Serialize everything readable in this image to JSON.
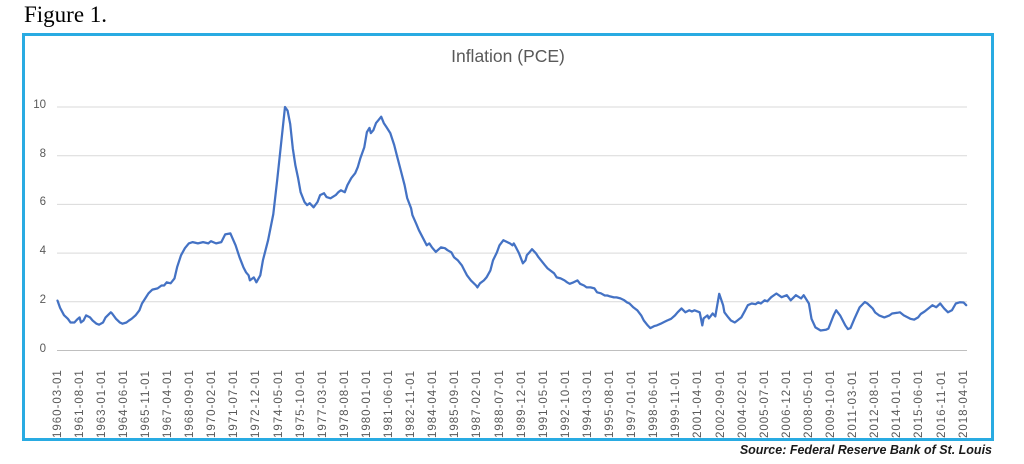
{
  "figure": {
    "label": "Figure 1.",
    "source_note": "Source: Federal Reserve Bank of St. Louis"
  },
  "colors": {
    "frame_border": "#29ABE2",
    "line": "#4472C4",
    "gridline": "#D9D9D9",
    "axis_zero_line": "#BFBFBF",
    "axis_text": "#595959",
    "title_text": "#595959",
    "source_text": "#1a1a1a"
  },
  "chart_data": {
    "type": "line",
    "title": "Inflation (PCE)",
    "xlabel": "",
    "ylabel": "",
    "ylim": [
      0,
      10
    ],
    "y_ticks": [
      0,
      2,
      4,
      6,
      8,
      10
    ],
    "grid": "horizontal",
    "legend": "none",
    "x_tick_labels": [
      "1960-03-01",
      "1961-08-01",
      "1963-01-01",
      "1964-06-01",
      "1965-11-01",
      "1967-04-01",
      "1968-09-01",
      "1970-02-01",
      "1971-07-01",
      "1972-12-01",
      "1974-05-01",
      "1975-10-01",
      "1977-03-01",
      "1978-08-01",
      "1980-01-01",
      "1981-06-01",
      "1982-11-01",
      "1984-04-01",
      "1985-09-01",
      "1987-02-01",
      "1988-07-01",
      "1989-12-01",
      "1991-05-01",
      "1992-10-01",
      "1994-03-01",
      "1995-08-01",
      "1997-01-01",
      "1998-06-01",
      "1999-11-01",
      "2001-04-01",
      "2002-09-01",
      "2004-02-01",
      "2005-07-01",
      "2006-12-01",
      "2008-05-01",
      "2009-10-01",
      "2011-03-01",
      "2012-08-01",
      "2014-01-01",
      "2015-06-01",
      "2016-11-01",
      "2018-04-01"
    ],
    "series": [
      {
        "name": "Inflation (PCE)",
        "color": "#4472C4",
        "points": [
          [
            "1960-03",
            2.05
          ],
          [
            "1960-05",
            1.75
          ],
          [
            "1960-08",
            1.45
          ],
          [
            "1960-11",
            1.3
          ],
          [
            "1961-01",
            1.15
          ],
          [
            "1961-04",
            1.15
          ],
          [
            "1961-06",
            1.27
          ],
          [
            "1961-08",
            1.36
          ],
          [
            "1961-09",
            1.15
          ],
          [
            "1961-11",
            1.23
          ],
          [
            "1962-01",
            1.44
          ],
          [
            "1962-04",
            1.36
          ],
          [
            "1962-06",
            1.23
          ],
          [
            "1962-09",
            1.1
          ],
          [
            "1962-11",
            1.06
          ],
          [
            "1963-02",
            1.15
          ],
          [
            "1963-04",
            1.36
          ],
          [
            "1963-08",
            1.57
          ],
          [
            "1963-09",
            1.52
          ],
          [
            "1963-12",
            1.3
          ],
          [
            "1964-03",
            1.15
          ],
          [
            "1964-05",
            1.1
          ],
          [
            "1964-08",
            1.15
          ],
          [
            "1964-10",
            1.23
          ],
          [
            "1964-12",
            1.3
          ],
          [
            "1965-03",
            1.44
          ],
          [
            "1965-06",
            1.65
          ],
          [
            "1965-08",
            1.93
          ],
          [
            "1965-11",
            2.18
          ],
          [
            "1966-01",
            2.35
          ],
          [
            "1966-04",
            2.5
          ],
          [
            "1966-08",
            2.55
          ],
          [
            "1966-11",
            2.67
          ],
          [
            "1967-01",
            2.67
          ],
          [
            "1967-03",
            2.8
          ],
          [
            "1967-06",
            2.76
          ],
          [
            "1967-09",
            2.96
          ],
          [
            "1967-11",
            3.42
          ],
          [
            "1968-02",
            3.91
          ],
          [
            "1968-05",
            4.2
          ],
          [
            "1968-08",
            4.4
          ],
          [
            "1968-11",
            4.45
          ],
          [
            "1969-03",
            4.4
          ],
          [
            "1969-07",
            4.45
          ],
          [
            "1969-11",
            4.4
          ],
          [
            "1970-01",
            4.49
          ],
          [
            "1970-05",
            4.4
          ],
          [
            "1970-09",
            4.45
          ],
          [
            "1970-12",
            4.77
          ],
          [
            "1971-04",
            4.81
          ],
          [
            "1971-08",
            4.32
          ],
          [
            "1971-11",
            3.83
          ],
          [
            "1972-02",
            3.42
          ],
          [
            "1972-04",
            3.21
          ],
          [
            "1972-06",
            3.09
          ],
          [
            "1972-07",
            2.88
          ],
          [
            "1972-10",
            3.0
          ],
          [
            "1972-12",
            2.8
          ],
          [
            "1973-03",
            3.09
          ],
          [
            "1973-05",
            3.7
          ],
          [
            "1973-09",
            4.53
          ],
          [
            "1974-01",
            5.6
          ],
          [
            "1974-04",
            7.0
          ],
          [
            "1974-07",
            8.5
          ],
          [
            "1974-10",
            10.0
          ],
          [
            "1974-12",
            9.85
          ],
          [
            "1975-02",
            9.3
          ],
          [
            "1975-04",
            8.3
          ],
          [
            "1975-06",
            7.6
          ],
          [
            "1975-08",
            7.1
          ],
          [
            "1975-10",
            6.5
          ],
          [
            "1976-01",
            6.1
          ],
          [
            "1976-03",
            5.97
          ],
          [
            "1976-05",
            6.05
          ],
          [
            "1976-08",
            5.88
          ],
          [
            "1976-11",
            6.1
          ],
          [
            "1977-01",
            6.38
          ],
          [
            "1977-04",
            6.46
          ],
          [
            "1977-06",
            6.3
          ],
          [
            "1977-09",
            6.25
          ],
          [
            "1978-01",
            6.38
          ],
          [
            "1978-03",
            6.5
          ],
          [
            "1978-05",
            6.58
          ],
          [
            "1978-08",
            6.5
          ],
          [
            "1978-10",
            6.79
          ],
          [
            "1979-01",
            7.08
          ],
          [
            "1979-04",
            7.28
          ],
          [
            "1979-06",
            7.53
          ],
          [
            "1979-08",
            7.9
          ],
          [
            "1979-11",
            8.35
          ],
          [
            "1980-01",
            8.97
          ],
          [
            "1980-03",
            9.14
          ],
          [
            "1980-04",
            8.93
          ],
          [
            "1980-06",
            9.05
          ],
          [
            "1980-08",
            9.34
          ],
          [
            "1980-10",
            9.47
          ],
          [
            "1980-12",
            9.6
          ],
          [
            "1981-02",
            9.34
          ],
          [
            "1981-04",
            9.18
          ],
          [
            "1981-07",
            8.93
          ],
          [
            "1981-10",
            8.44
          ],
          [
            "1981-12",
            8.02
          ],
          [
            "1982-03",
            7.41
          ],
          [
            "1982-06",
            6.79
          ],
          [
            "1982-08",
            6.26
          ],
          [
            "1982-11",
            5.84
          ],
          [
            "1982-12",
            5.56
          ],
          [
            "1983-03",
            5.2
          ],
          [
            "1983-05",
            4.94
          ],
          [
            "1983-09",
            4.53
          ],
          [
            "1983-11",
            4.32
          ],
          [
            "1984-01",
            4.4
          ],
          [
            "1984-03",
            4.24
          ],
          [
            "1984-06",
            4.05
          ],
          [
            "1984-10",
            4.24
          ],
          [
            "1985-01",
            4.2
          ],
          [
            "1985-03",
            4.12
          ],
          [
            "1985-06",
            4.03
          ],
          [
            "1985-08",
            3.83
          ],
          [
            "1985-11",
            3.7
          ],
          [
            "1986-02",
            3.5
          ],
          [
            "1986-04",
            3.29
          ],
          [
            "1986-06",
            3.09
          ],
          [
            "1986-09",
            2.88
          ],
          [
            "1987-01",
            2.67
          ],
          [
            "1987-02",
            2.59
          ],
          [
            "1987-04",
            2.76
          ],
          [
            "1987-07",
            2.88
          ],
          [
            "1987-09",
            3.0
          ],
          [
            "1987-12",
            3.29
          ],
          [
            "1988-02",
            3.7
          ],
          [
            "1988-05",
            4.03
          ],
          [
            "1988-07",
            4.32
          ],
          [
            "1988-10",
            4.53
          ],
          [
            "1989-01",
            4.45
          ],
          [
            "1989-03",
            4.4
          ],
          [
            "1989-05",
            4.32
          ],
          [
            "1989-06",
            4.4
          ],
          [
            "1989-08",
            4.2
          ],
          [
            "1989-10",
            3.99
          ],
          [
            "1990-01",
            3.58
          ],
          [
            "1990-03",
            3.7
          ],
          [
            "1990-04",
            3.91
          ],
          [
            "1990-06",
            4.03
          ],
          [
            "1990-08",
            4.16
          ],
          [
            "1990-11",
            3.99
          ],
          [
            "1991-01",
            3.83
          ],
          [
            "1991-03",
            3.7
          ],
          [
            "1991-06",
            3.5
          ],
          [
            "1991-08",
            3.37
          ],
          [
            "1991-10",
            3.29
          ],
          [
            "1992-01",
            3.17
          ],
          [
            "1992-03",
            3.0
          ],
          [
            "1992-06",
            2.96
          ],
          [
            "1992-09",
            2.88
          ],
          [
            "1992-11",
            2.8
          ],
          [
            "1993-01",
            2.74
          ],
          [
            "1993-04",
            2.8
          ],
          [
            "1993-07",
            2.88
          ],
          [
            "1993-09",
            2.74
          ],
          [
            "1993-12",
            2.67
          ],
          [
            "1994-02",
            2.59
          ],
          [
            "1994-05",
            2.59
          ],
          [
            "1994-08",
            2.55
          ],
          [
            "1994-10",
            2.39
          ],
          [
            "1995-01",
            2.35
          ],
          [
            "1995-04",
            2.26
          ],
          [
            "1995-06",
            2.26
          ],
          [
            "1995-08",
            2.22
          ],
          [
            "1995-11",
            2.18
          ],
          [
            "1996-01",
            2.18
          ],
          [
            "1996-04",
            2.14
          ],
          [
            "1996-07",
            2.06
          ],
          [
            "1996-09",
            1.98
          ],
          [
            "1996-11",
            1.93
          ],
          [
            "1997-02",
            1.77
          ],
          [
            "1997-05",
            1.65
          ],
          [
            "1997-08",
            1.44
          ],
          [
            "1997-10",
            1.23
          ],
          [
            "1998-01",
            1.03
          ],
          [
            "1998-03",
            0.92
          ],
          [
            "1998-06",
            1.0
          ],
          [
            "1998-08",
            1.03
          ],
          [
            "1998-11",
            1.1
          ],
          [
            "1999-02",
            1.18
          ],
          [
            "1999-04",
            1.23
          ],
          [
            "1999-07",
            1.3
          ],
          [
            "1999-10",
            1.44
          ],
          [
            "1999-12",
            1.57
          ],
          [
            "2000-03",
            1.73
          ],
          [
            "2000-06",
            1.57
          ],
          [
            "2000-09",
            1.65
          ],
          [
            "2000-11",
            1.6
          ],
          [
            "2001-01",
            1.65
          ],
          [
            "2001-05",
            1.57
          ],
          [
            "2001-07",
            1.03
          ],
          [
            "2001-08",
            1.32
          ],
          [
            "2001-11",
            1.44
          ],
          [
            "2001-12",
            1.32
          ],
          [
            "2002-03",
            1.52
          ],
          [
            "2002-05",
            1.4
          ],
          [
            "2002-08",
            2.33
          ],
          [
            "2002-11",
            1.86
          ],
          [
            "2002-12",
            1.57
          ],
          [
            "2003-03",
            1.36
          ],
          [
            "2003-05",
            1.23
          ],
          [
            "2003-08",
            1.15
          ],
          [
            "2003-10",
            1.23
          ],
          [
            "2004-01",
            1.36
          ],
          [
            "2004-04",
            1.65
          ],
          [
            "2004-06",
            1.86
          ],
          [
            "2004-09",
            1.93
          ],
          [
            "2004-12",
            1.9
          ],
          [
            "2005-02",
            1.98
          ],
          [
            "2005-04",
            1.93
          ],
          [
            "2005-07",
            2.06
          ],
          [
            "2005-09",
            2.02
          ],
          [
            "2005-12",
            2.19
          ],
          [
            "2006-04",
            2.34
          ],
          [
            "2006-08",
            2.19
          ],
          [
            "2006-12",
            2.27
          ],
          [
            "2007-03",
            2.06
          ],
          [
            "2007-07",
            2.27
          ],
          [
            "2007-11",
            2.14
          ],
          [
            "2008-01",
            2.27
          ],
          [
            "2008-05",
            1.93
          ],
          [
            "2008-07",
            1.3
          ],
          [
            "2008-10",
            0.95
          ],
          [
            "2009-02",
            0.82
          ],
          [
            "2009-06",
            0.85
          ],
          [
            "2009-08",
            0.9
          ],
          [
            "2009-12",
            1.44
          ],
          [
            "2010-02",
            1.65
          ],
          [
            "2010-05",
            1.44
          ],
          [
            "2010-09",
            1.03
          ],
          [
            "2010-11",
            0.88
          ],
          [
            "2011-01",
            0.92
          ],
          [
            "2011-04",
            1.3
          ],
          [
            "2011-08",
            1.77
          ],
          [
            "2011-12",
            1.99
          ],
          [
            "2012-02",
            1.93
          ],
          [
            "2012-06",
            1.73
          ],
          [
            "2012-08",
            1.56
          ],
          [
            "2012-11",
            1.44
          ],
          [
            "2013-03",
            1.36
          ],
          [
            "2013-07",
            1.44
          ],
          [
            "2013-09",
            1.52
          ],
          [
            "2014-01",
            1.55
          ],
          [
            "2014-03",
            1.57
          ],
          [
            "2014-06",
            1.44
          ],
          [
            "2014-09",
            1.36
          ],
          [
            "2014-11",
            1.3
          ],
          [
            "2015-02",
            1.27
          ],
          [
            "2015-05",
            1.36
          ],
          [
            "2015-07",
            1.5
          ],
          [
            "2015-10",
            1.6
          ],
          [
            "2016-01",
            1.73
          ],
          [
            "2016-04",
            1.86
          ],
          [
            "2016-07",
            1.78
          ],
          [
            "2016-10",
            1.93
          ],
          [
            "2017-01",
            1.73
          ],
          [
            "2017-04",
            1.57
          ],
          [
            "2017-07",
            1.65
          ],
          [
            "2017-10",
            1.93
          ],
          [
            "2018-01",
            1.98
          ],
          [
            "2018-04",
            1.97
          ],
          [
            "2018-06",
            1.86
          ]
        ]
      }
    ]
  }
}
